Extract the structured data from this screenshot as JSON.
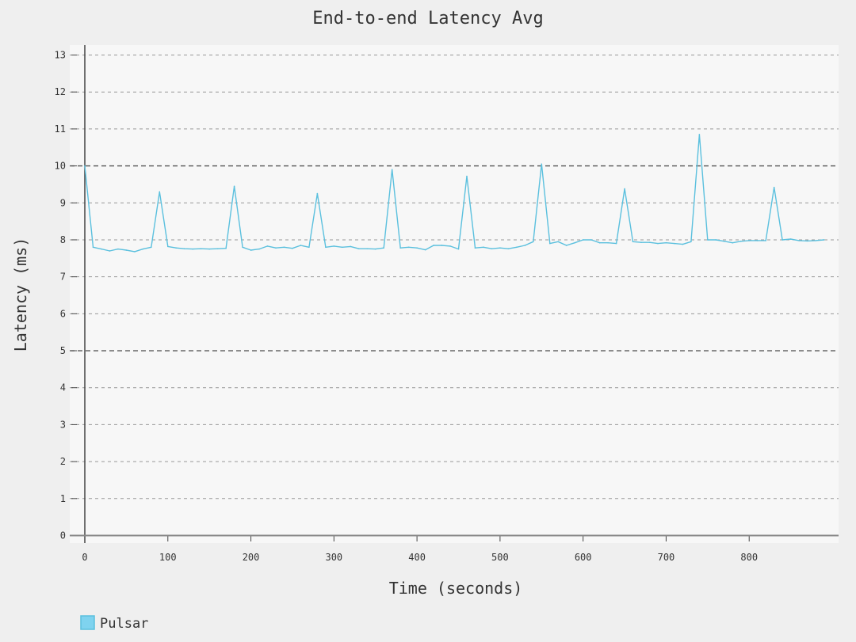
{
  "chart_data": {
    "type": "line",
    "title": "End-to-end Latency Avg",
    "xlabel": "Time (seconds)",
    "ylabel": "Latency (ms)",
    "xlim": [
      0,
      900
    ],
    "ylim": [
      0,
      13
    ],
    "x_ticks": [
      "0",
      "100",
      "200",
      "300",
      "400",
      "500",
      "600",
      "700",
      "800"
    ],
    "y_ticks": [
      "0",
      "1",
      "2",
      "3",
      "4",
      "5",
      "6",
      "7",
      "8",
      "9",
      "10",
      "11",
      "12",
      "13"
    ],
    "grid": "horizontal dashed",
    "legend_position": "bottom-left",
    "series": [
      {
        "name": "Pulsar",
        "color": "#5bc0de",
        "x": [
          0,
          10,
          20,
          30,
          40,
          50,
          60,
          70,
          80,
          90,
          100,
          110,
          120,
          130,
          140,
          150,
          160,
          170,
          180,
          190,
          200,
          210,
          220,
          230,
          240,
          250,
          260,
          270,
          280,
          290,
          300,
          310,
          320,
          330,
          340,
          350,
          360,
          370,
          380,
          390,
          400,
          410,
          420,
          430,
          440,
          450,
          460,
          470,
          480,
          490,
          500,
          510,
          520,
          530,
          540,
          550,
          560,
          570,
          580,
          590,
          600,
          610,
          620,
          630,
          640,
          650,
          660,
          670,
          680,
          690,
          700,
          710,
          720,
          730,
          740,
          750,
          760,
          770,
          780,
          790,
          800,
          810,
          820,
          830,
          840,
          850,
          860,
          870,
          880,
          890
        ],
        "y": [
          10.0,
          7.8,
          7.75,
          7.7,
          7.75,
          7.72,
          7.68,
          7.75,
          7.8,
          9.3,
          7.82,
          7.78,
          7.76,
          7.75,
          7.76,
          7.75,
          7.76,
          7.77,
          9.45,
          7.8,
          7.72,
          7.75,
          7.83,
          7.78,
          7.8,
          7.77,
          7.85,
          7.8,
          9.25,
          7.8,
          7.83,
          7.8,
          7.82,
          7.76,
          7.76,
          7.75,
          7.78,
          9.9,
          7.78,
          7.8,
          7.78,
          7.73,
          7.85,
          7.85,
          7.83,
          7.75,
          9.72,
          7.78,
          7.8,
          7.76,
          7.78,
          7.76,
          7.8,
          7.85,
          7.95,
          10.05,
          7.9,
          7.95,
          7.85,
          7.92,
          8.0,
          8.0,
          7.92,
          7.92,
          7.9,
          9.38,
          7.95,
          7.93,
          7.93,
          7.9,
          7.92,
          7.9,
          7.88,
          7.95,
          10.85,
          8.0,
          8.0,
          7.96,
          7.92,
          7.96,
          7.98,
          7.98,
          7.98,
          9.42,
          8.0,
          8.02,
          7.98,
          7.97,
          7.98,
          8.0
        ]
      }
    ]
  }
}
